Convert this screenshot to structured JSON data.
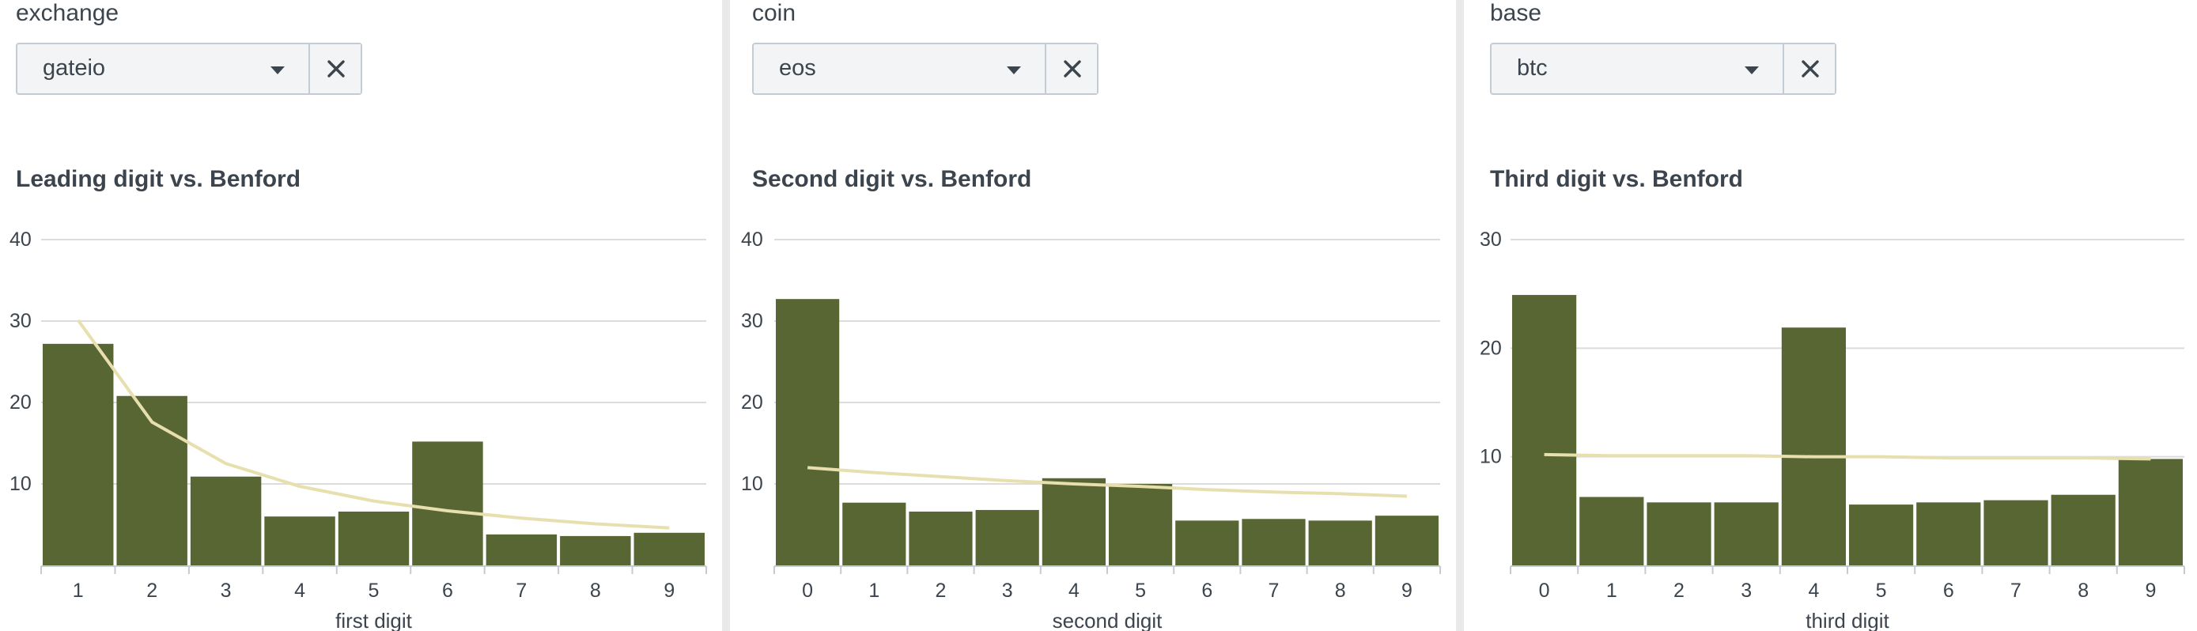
{
  "panels": [
    {
      "filter": {
        "label": "exchange",
        "value": "gateio"
      },
      "chart_title": "Leading digit vs. Benford"
    },
    {
      "filter": {
        "label": "coin",
        "value": "eos"
      },
      "chart_title": "Second digit vs. Benford"
    },
    {
      "filter": {
        "label": "base",
        "value": "btc"
      },
      "chart_title": "Third digit vs. Benford"
    }
  ],
  "colors": {
    "bar": "#586633",
    "line": "#e8dfae",
    "grid": "#dcdcdc",
    "axis": "#c3cbd4"
  },
  "icons": {
    "dropdown": "caret-down-icon",
    "clear": "close-icon"
  },
  "chart_data": [
    {
      "type": "bar",
      "title": "Leading digit vs. Benford",
      "xlabel": "first digit",
      "ylabel": "",
      "categories": [
        "1",
        "2",
        "3",
        "4",
        "5",
        "6",
        "7",
        "8",
        "9"
      ],
      "series": [
        {
          "type": "bar",
          "values": [
            27.2,
            20.8,
            10.9,
            6.0,
            6.6,
            15.2,
            3.8,
            3.6,
            4.0
          ]
        },
        {
          "type": "line",
          "values": [
            30.1,
            17.6,
            12.5,
            9.7,
            7.9,
            6.7,
            5.8,
            5.1,
            4.6
          ]
        }
      ],
      "yticks": [
        10,
        20,
        30,
        40
      ],
      "ylim": [
        0,
        40
      ],
      "grid": true
    },
    {
      "type": "bar",
      "title": "Second digit vs. Benford",
      "xlabel": "second digit",
      "ylabel": "",
      "categories": [
        "0",
        "1",
        "2",
        "3",
        "4",
        "5",
        "6",
        "7",
        "8",
        "9"
      ],
      "series": [
        {
          "type": "bar",
          "values": [
            32.7,
            7.7,
            6.6,
            6.8,
            10.7,
            10.0,
            5.5,
            5.7,
            5.5,
            6.1
          ]
        },
        {
          "type": "line",
          "values": [
            12.0,
            11.4,
            10.9,
            10.4,
            10.0,
            9.7,
            9.3,
            9.0,
            8.8,
            8.5
          ]
        }
      ],
      "yticks": [
        10,
        20,
        30,
        40
      ],
      "ylim": [
        0,
        40
      ],
      "grid": true
    },
    {
      "type": "bar",
      "title": "Third digit vs. Benford",
      "xlabel": "third digit",
      "ylabel": "",
      "categories": [
        "0",
        "1",
        "2",
        "3",
        "4",
        "5",
        "6",
        "7",
        "8",
        "9"
      ],
      "series": [
        {
          "type": "bar",
          "values": [
            24.9,
            6.3,
            5.8,
            5.8,
            21.9,
            5.6,
            5.8,
            6.0,
            6.5,
            9.8
          ]
        },
        {
          "type": "line",
          "values": [
            10.2,
            10.1,
            10.1,
            10.1,
            10.0,
            10.0,
            9.9,
            9.9,
            9.9,
            9.8
          ]
        }
      ],
      "yticks": [
        10,
        20,
        30
      ],
      "ylim": [
        0,
        30
      ],
      "grid": true
    }
  ]
}
